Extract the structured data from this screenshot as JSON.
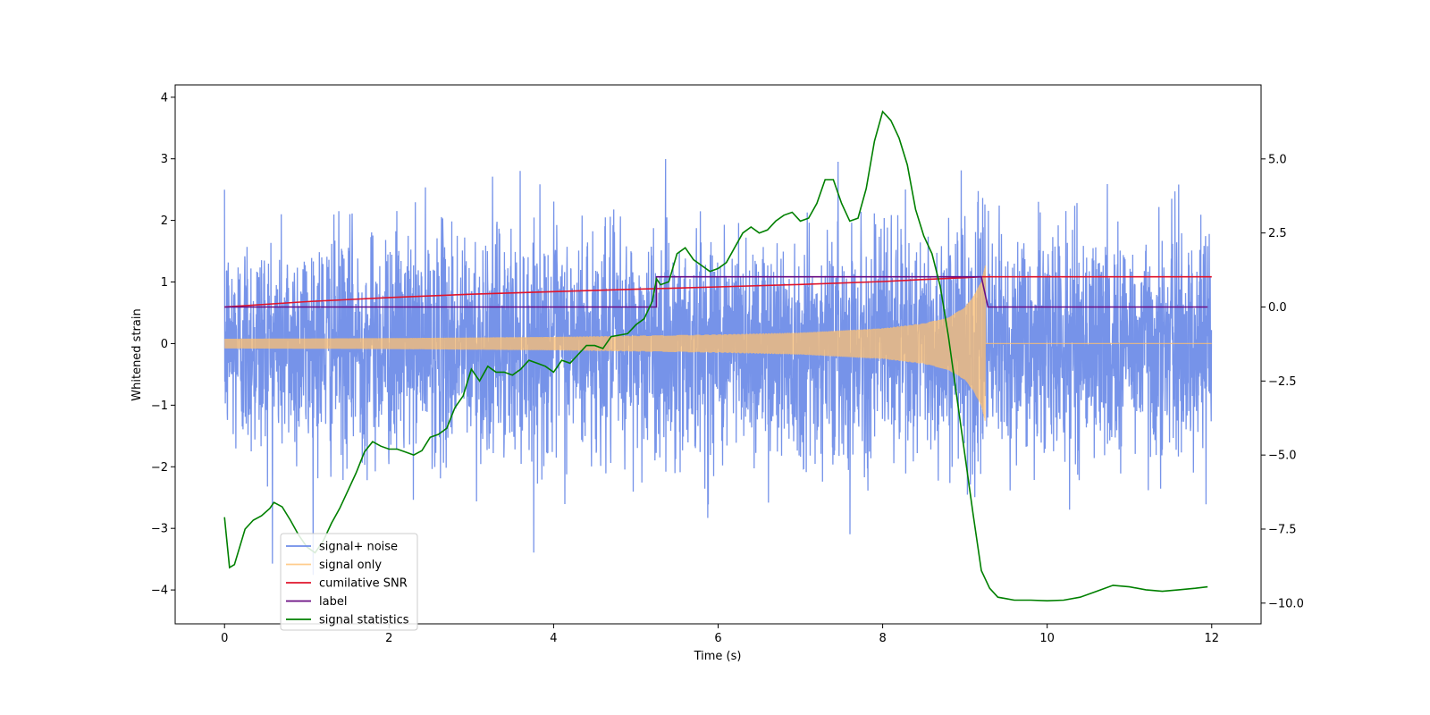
{
  "chart_data": {
    "type": "line",
    "title": "",
    "xlabel": "Time (s)",
    "ylabel": "Whitened strain",
    "y2label": "",
    "xlim": [
      -0.6,
      12.6
    ],
    "ylim": [
      -4.55,
      4.2
    ],
    "y2lim": [
      -10.7,
      7.5
    ],
    "x_ticks": [
      0,
      2,
      4,
      6,
      8,
      10,
      12
    ],
    "x_tick_labels": [
      "0",
      "2",
      "4",
      "6",
      "8",
      "10",
      "12"
    ],
    "y_ticks": [
      -4,
      -3,
      -2,
      -1,
      0,
      1,
      2,
      3,
      4
    ],
    "y_tick_labels": [
      "−4",
      "−3",
      "−2",
      "−1",
      "0",
      "1",
      "2",
      "3",
      "4"
    ],
    "y2_ticks": [
      -10.0,
      -7.5,
      -5.0,
      -2.5,
      0.0,
      2.5,
      5.0
    ],
    "y2_tick_labels": [
      "−10.0",
      "−7.5",
      "−5.0",
      "−2.5",
      "0.0",
      "2.5",
      "5.0"
    ],
    "grid": false,
    "legend_position": "lower-left",
    "series": [
      {
        "name": "signal+ noise",
        "axis": "left",
        "color": "#6f8de8",
        "kind": "noise",
        "x_range": [
          0,
          12
        ],
        "sample_step": 0.003,
        "noise_std": 0.9,
        "peak_max": 3.8,
        "peak_min": -4.15
      },
      {
        "name": "signal only",
        "axis": "left",
        "color": "#ffc070",
        "kind": "chirp",
        "envelope_x": [
          0,
          1,
          2,
          3,
          4,
          5,
          6,
          7,
          8,
          8.5,
          8.8,
          9.0,
          9.1,
          9.2,
          9.25
        ],
        "envelope_y": [
          0.07,
          0.075,
          0.08,
          0.09,
          0.1,
          0.12,
          0.14,
          0.17,
          0.24,
          0.32,
          0.42,
          0.58,
          0.75,
          1.0,
          1.28
        ],
        "after_merger": 0.0
      },
      {
        "name": "cumilative SNR",
        "axis": "right",
        "color": "#e0142b",
        "x": [
          0,
          1,
          2,
          3,
          4,
          5,
          6,
          7,
          8,
          8.5,
          9.0,
          9.2,
          9.25,
          12
        ],
        "y": [
          0.0,
          0.18,
          0.32,
          0.43,
          0.52,
          0.6,
          0.68,
          0.76,
          0.86,
          0.93,
          0.99,
          1.02,
          1.02,
          1.02
        ]
      },
      {
        "name": "label",
        "axis": "right",
        "color": "#6a0d83",
        "x": [
          0,
          5.25,
          5.25,
          9.2,
          9.28,
          11.95
        ],
        "y": [
          0.0,
          0.0,
          1.02,
          1.02,
          0.0,
          0.0
        ]
      },
      {
        "name": "signal statistics",
        "axis": "right",
        "color": "#008000",
        "x": [
          0.0,
          0.06,
          0.12,
          0.25,
          0.35,
          0.45,
          0.55,
          0.6,
          0.7,
          0.8,
          0.9,
          1.0,
          1.1,
          1.2,
          1.3,
          1.4,
          1.5,
          1.6,
          1.7,
          1.8,
          1.9,
          2.0,
          2.1,
          2.2,
          2.3,
          2.4,
          2.5,
          2.6,
          2.7,
          2.8,
          2.9,
          3.0,
          3.1,
          3.2,
          3.3,
          3.4,
          3.5,
          3.6,
          3.7,
          3.8,
          3.9,
          4.0,
          4.1,
          4.2,
          4.3,
          4.4,
          4.5,
          4.6,
          4.7,
          4.8,
          4.9,
          5.0,
          5.1,
          5.2,
          5.25,
          5.3,
          5.4,
          5.5,
          5.6,
          5.7,
          5.8,
          5.9,
          6.0,
          6.1,
          6.2,
          6.3,
          6.4,
          6.5,
          6.6,
          6.7,
          6.8,
          6.9,
          7.0,
          7.1,
          7.2,
          7.3,
          7.4,
          7.5,
          7.6,
          7.7,
          7.8,
          7.9,
          8.0,
          8.1,
          8.2,
          8.3,
          8.4,
          8.5,
          8.6,
          8.7,
          8.8,
          8.9,
          9.0,
          9.1,
          9.2,
          9.3,
          9.4,
          9.5,
          9.6,
          9.8,
          10.0,
          10.2,
          10.4,
          10.6,
          10.8,
          11.0,
          11.2,
          11.4,
          11.6,
          11.8,
          11.95
        ],
        "y": [
          -7.1,
          -8.8,
          -8.7,
          -7.5,
          -7.2,
          -7.05,
          -6.8,
          -6.6,
          -6.75,
          -7.2,
          -7.7,
          -8.1,
          -8.3,
          -7.9,
          -7.3,
          -6.8,
          -6.2,
          -5.6,
          -4.9,
          -4.55,
          -4.7,
          -4.8,
          -4.8,
          -4.9,
          -5.0,
          -4.85,
          -4.4,
          -4.3,
          -4.1,
          -3.4,
          -3.0,
          -2.1,
          -2.5,
          -2.0,
          -2.2,
          -2.2,
          -2.3,
          -2.1,
          -1.8,
          -1.9,
          -2.0,
          -2.2,
          -1.8,
          -1.9,
          -1.6,
          -1.3,
          -1.3,
          -1.4,
          -1.0,
          -0.95,
          -0.9,
          -0.6,
          -0.4,
          0.2,
          0.95,
          0.75,
          0.85,
          1.8,
          2.0,
          1.6,
          1.4,
          1.2,
          1.3,
          1.5,
          2.0,
          2.5,
          2.7,
          2.5,
          2.6,
          2.9,
          3.1,
          3.2,
          2.9,
          3.0,
          3.5,
          4.3,
          4.3,
          3.5,
          2.9,
          3.0,
          4.0,
          5.6,
          6.6,
          6.3,
          5.7,
          4.8,
          3.3,
          2.4,
          1.8,
          0.7,
          -1.0,
          -3.0,
          -5.0,
          -7.0,
          -8.9,
          -9.5,
          -9.8,
          -9.85,
          -9.9,
          -9.9,
          -9.92,
          -9.9,
          -9.8,
          -9.6,
          -9.4,
          -9.45,
          -9.55,
          -9.6,
          -9.55,
          -9.5,
          -9.45
        ]
      }
    ]
  }
}
